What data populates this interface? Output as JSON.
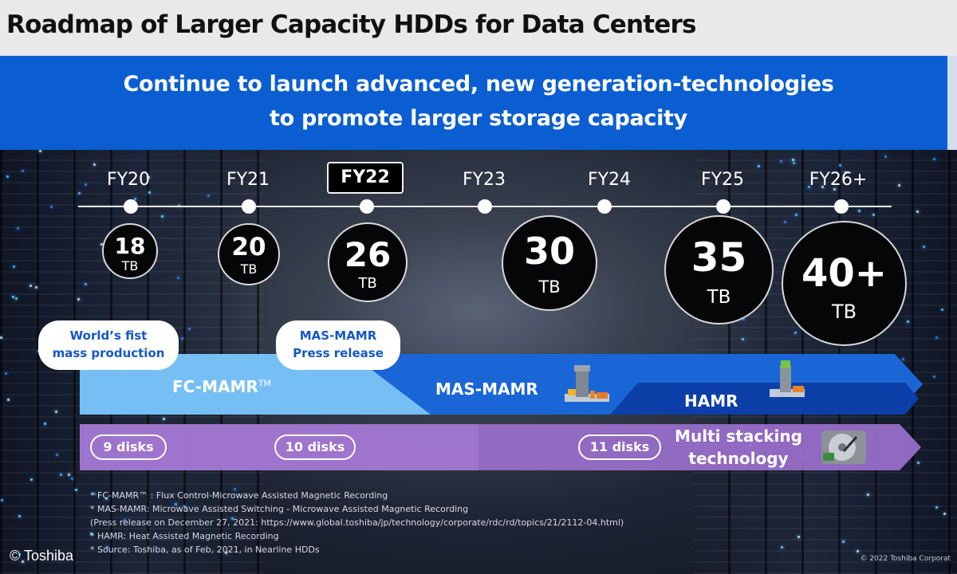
{
  "title": "Roadmap of Larger Capacity HDDs for Data Centers",
  "banner": {
    "line1": "Continue to launch advanced, new generation-technologies",
    "line2": "to promote larger storage capacity"
  },
  "timeline": {
    "years": [
      "FY20",
      "FY21",
      "FY22",
      "FY23",
      "FY24",
      "FY25",
      "FY26+"
    ],
    "highlighted_year": "FY22"
  },
  "capacities": [
    {
      "value": "18",
      "unit": "TB"
    },
    {
      "value": "20",
      "unit": "TB"
    },
    {
      "value": "26",
      "unit": "TB"
    },
    {
      "value": "30",
      "unit": "TB"
    },
    {
      "value": "35",
      "unit": "TB"
    },
    {
      "value": "40+",
      "unit": "TB"
    }
  ],
  "callouts": {
    "first_line1": "World’s fist",
    "first_line2": "mass production",
    "mas_line1": "MAS-MAMR",
    "mas_line2": "Press release"
  },
  "technologies": {
    "fc_mamr": "FC-MAMR",
    "fc_mamr_tm": "TM",
    "mas_mamr": "MAS-MAMR",
    "hamr": "HAMR"
  },
  "disks": {
    "d9": "9 disks",
    "d10": "10 disks",
    "d11": "11 disks",
    "multi_line1": "Multi stacking",
    "multi_line2": "technology"
  },
  "footnotes": [
    "* FC-MAMR™ : Flux Control-Microwave Assisted Magnetic Recording",
    "* MAS-MAMR: Microwave Assisted Switching - Microwave Assisted Magnetic Recording",
    "   (Press release on December 27, 2021: https://www.global.toshiba/jp/technology/corporate/rdc/rd/topics/21/2112-04.html)",
    "* HAMR: Heat Assisted Magnetic Recording",
    "* Source: Toshiba, as of Feb, 2021, in Nearline HDDs"
  ],
  "credit": "© Toshiba",
  "copyright": "© 2022 Toshiba Corporat",
  "colors": {
    "banner_blue": "#0a5ed1",
    "fc_light_blue": "#76bff5",
    "mas_blue": "#1a66d6",
    "hamr_dark_blue": "#0d3fa8",
    "disks_purple": "#9a6fcb",
    "callout_text": "#1557c4"
  }
}
